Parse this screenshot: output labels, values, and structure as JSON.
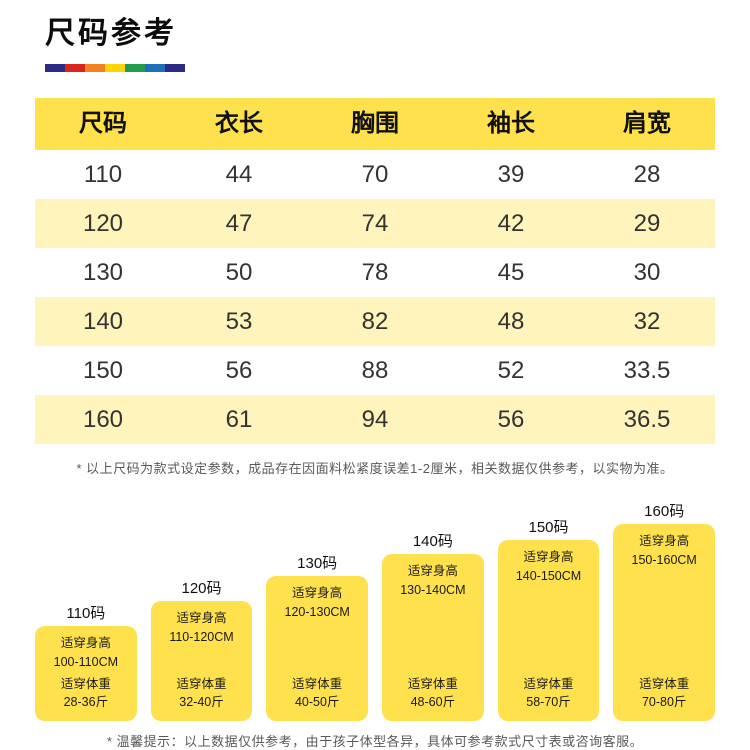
{
  "header": {
    "title": "尺码参考"
  },
  "table": {
    "headers": [
      "尺码",
      "衣长",
      "胸围",
      "袖长",
      "肩宽"
    ],
    "rows": [
      [
        "110",
        "44",
        "70",
        "39",
        "28"
      ],
      [
        "120",
        "47",
        "74",
        "42",
        "29"
      ],
      [
        "130",
        "50",
        "78",
        "45",
        "30"
      ],
      [
        "140",
        "53",
        "82",
        "48",
        "32"
      ],
      [
        "150",
        "56",
        "88",
        "52",
        "33.5"
      ],
      [
        "160",
        "61",
        "94",
        "56",
        "36.5"
      ]
    ]
  },
  "notes": {
    "table_note": "* 以上尺码为款式设定参数，成品存在因面料松紧度误差1-2厘米，相关数据仅供参考，以实物为准。",
    "bottom_note": "* 温馨提示：以上数据仅供参考，由于孩子体型各异，具体可参考款式尺寸表或咨询客服。"
  },
  "bars": [
    {
      "size": "110码",
      "height_label": "适穿身高",
      "height_range": "100-110CM",
      "weight_label": "适穿体重",
      "weight_range": "28-36斤"
    },
    {
      "size": "120码",
      "height_label": "适穿身高",
      "height_range": "110-120CM",
      "weight_label": "适穿体重",
      "weight_range": "32-40斤"
    },
    {
      "size": "130码",
      "height_label": "适穿身高",
      "height_range": "120-130CM",
      "weight_label": "适穿体重",
      "weight_range": "40-50斤"
    },
    {
      "size": "140码",
      "height_label": "适穿身高",
      "height_range": "130-140CM",
      "weight_label": "适穿体重",
      "weight_range": "48-60斤"
    },
    {
      "size": "150码",
      "height_label": "适穿身高",
      "height_range": "140-150CM",
      "weight_label": "适穿体重",
      "weight_range": "58-70斤"
    },
    {
      "size": "160码",
      "height_label": "适穿身高",
      "height_range": "150-160CM",
      "weight_label": "适穿体重",
      "weight_range": "70-80斤"
    }
  ],
  "colors": {
    "accent_yellow": "#FFE14D",
    "row_alt_yellow": "#FFF4BC",
    "rainbow": [
      "#2B2B86",
      "#D9251C",
      "#F0831E",
      "#FFD500",
      "#1F9D4D",
      "#1C6FB8",
      "#2B2B86"
    ]
  },
  "chart_data": [
    {
      "type": "table",
      "title": "尺码参考",
      "columns": [
        "尺码",
        "衣长",
        "胸围",
        "袖长",
        "肩宽"
      ],
      "rows": [
        [
          110,
          44,
          70,
          39,
          28
        ],
        [
          120,
          47,
          74,
          42,
          29
        ],
        [
          130,
          50,
          78,
          45,
          30
        ],
        [
          140,
          53,
          82,
          48,
          32
        ],
        [
          150,
          56,
          88,
          52,
          33.5
        ],
        [
          160,
          61,
          94,
          56,
          36.5
        ]
      ]
    },
    {
      "type": "bar",
      "categories": [
        "110码",
        "120码",
        "130码",
        "140码",
        "150码",
        "160码"
      ],
      "series": [
        {
          "name": "适穿身高",
          "values": [
            "100-110CM",
            "110-120CM",
            "120-130CM",
            "130-140CM",
            "140-150CM",
            "150-160CM"
          ]
        },
        {
          "name": "适穿体重",
          "values": [
            "28-36斤",
            "32-40斤",
            "40-50斤",
            "48-60斤",
            "58-70斤",
            "70-80斤"
          ]
        }
      ],
      "legend_position": "none",
      "grid": false
    }
  ]
}
